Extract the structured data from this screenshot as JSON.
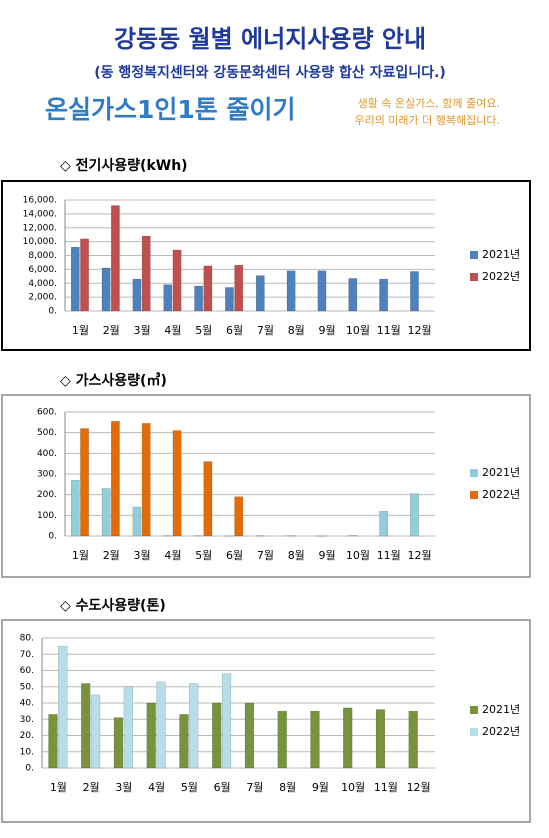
{
  "header": {
    "title": "강동동 월별 에너지사용량 안내",
    "subtitle": "(동 행정복지센터와 강동문화센터 사용량 합산 자료입니다.)",
    "banner": "온실가스1인1톤 줄이기",
    "slogan": [
      "생활 속 온실가스, 함께 줄여요.",
      "우리의 미래가 더 행복해집니다."
    ]
  },
  "chart_data": [
    {
      "type": "bar",
      "title": "◇ 전기사용량(kWh)",
      "categories": [
        "1월",
        "2월",
        "3월",
        "4월",
        "5월",
        "6월",
        "7월",
        "8월",
        "9월",
        "10월",
        "11월",
        "12월"
      ],
      "series": [
        {
          "name": "2021년",
          "color": "#4f81bd",
          "values": [
            9200,
            6200,
            4600,
            3800,
            3600,
            3400,
            5100,
            5800,
            5800,
            4700,
            4600,
            5700
          ]
        },
        {
          "name": "2022년",
          "color": "#c0504d",
          "values": [
            10400,
            15200,
            10800,
            8800,
            6500,
            6600,
            null,
            null,
            null,
            null,
            null,
            null
          ]
        }
      ],
      "ylim": [
        0,
        16000
      ],
      "yticks": [
        {
          "value": 0,
          "label": "0."
        },
        {
          "value": 2000,
          "label": "2,000."
        },
        {
          "value": 4000,
          "label": "4,000."
        },
        {
          "value": 6000,
          "label": "6,000."
        },
        {
          "value": 8000,
          "label": "8,000."
        },
        {
          "value": 10000,
          "label": "10,000."
        },
        {
          "value": 12000,
          "label": "12,000."
        },
        {
          "value": 14000,
          "label": "14,000."
        },
        {
          "value": 16000,
          "label": "16,000."
        }
      ],
      "grid": true,
      "legend": "right"
    },
    {
      "type": "bar",
      "title": "◇ 가스사용량(㎥)",
      "categories": [
        "1월",
        "2월",
        "3월",
        "4월",
        "5월",
        "6월",
        "7월",
        "8월",
        "9월",
        "10월",
        "11월",
        "12월"
      ],
      "series": [
        {
          "name": "2021년",
          "color": "#92cddc",
          "values": [
            270,
            230,
            140,
            2,
            2,
            1,
            2,
            2,
            1,
            3,
            120,
            205
          ]
        },
        {
          "name": "2022년",
          "color": "#e36c09",
          "values": [
            520,
            555,
            545,
            510,
            360,
            190,
            null,
            null,
            null,
            null,
            null,
            null
          ]
        }
      ],
      "ylim": [
        0,
        600
      ],
      "yticks": [
        {
          "value": 0,
          "label": "0."
        },
        {
          "value": 100,
          "label": "100."
        },
        {
          "value": 200,
          "label": "200."
        },
        {
          "value": 300,
          "label": "300."
        },
        {
          "value": 400,
          "label": "400."
        },
        {
          "value": 500,
          "label": "500."
        },
        {
          "value": 600,
          "label": "600."
        }
      ],
      "grid": true,
      "legend": "right"
    },
    {
      "type": "bar",
      "title": "◇ 수도사용량(톤)",
      "categories": [
        "1월",
        "2월",
        "3월",
        "4월",
        "5월",
        "6월",
        "7월",
        "8월",
        "9월",
        "10월",
        "11월",
        "12월"
      ],
      "series": [
        {
          "name": "2021년",
          "color": "#77933c",
          "values": [
            33,
            52,
            31,
            40,
            33,
            40,
            40,
            35,
            35,
            37,
            36,
            35
          ]
        },
        {
          "name": "2022년",
          "color": "#b7dee8",
          "values": [
            75,
            45,
            50,
            53,
            52,
            58,
            null,
            null,
            null,
            null,
            null,
            null
          ]
        }
      ],
      "ylim": [
        0,
        80
      ],
      "yticks": [
        {
          "value": 0,
          "label": "0."
        },
        {
          "value": 10,
          "label": "10."
        },
        {
          "value": 20,
          "label": "20."
        },
        {
          "value": 30,
          "label": "30."
        },
        {
          "value": 40,
          "label": "40."
        },
        {
          "value": 50,
          "label": "50."
        },
        {
          "value": 60,
          "label": "60."
        },
        {
          "value": 70,
          "label": "70."
        },
        {
          "value": 80,
          "label": "80."
        }
      ],
      "grid": true,
      "legend": "right"
    }
  ]
}
